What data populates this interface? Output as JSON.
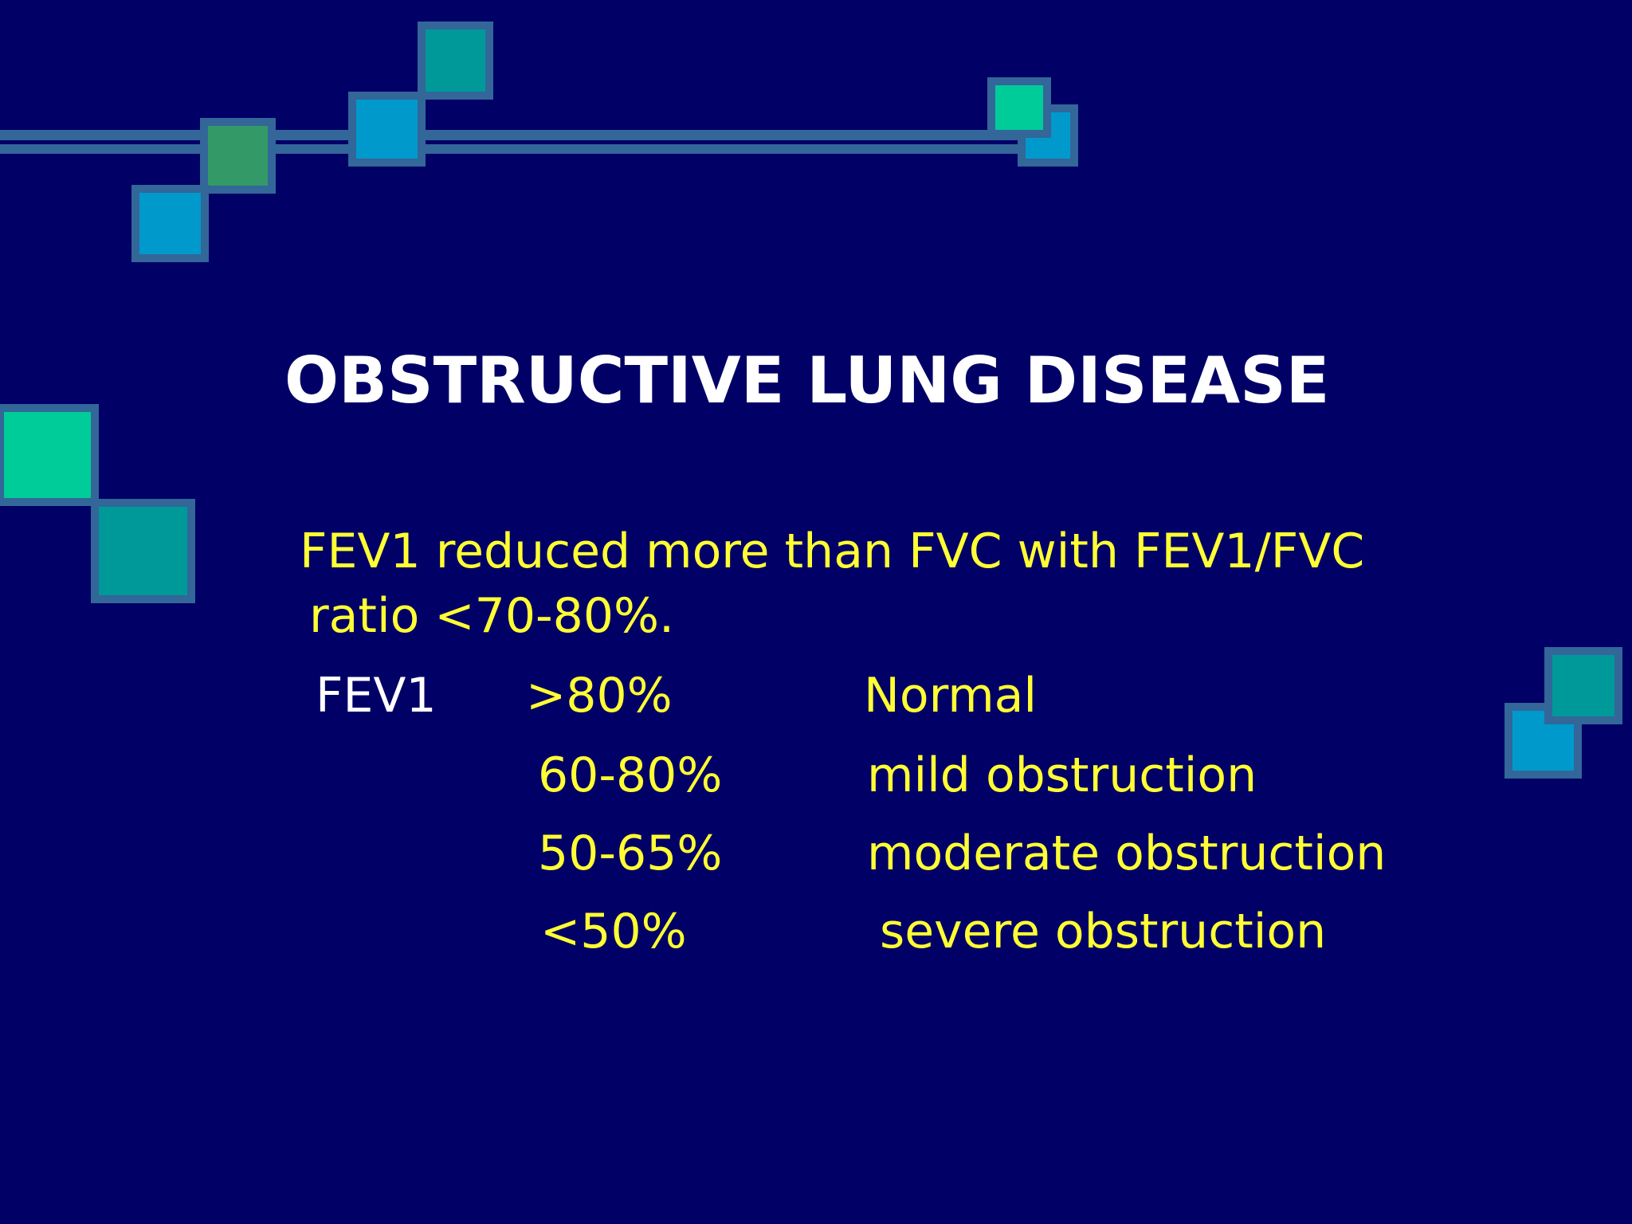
{
  "slide": {
    "title": "OBSTRUCTIVE LUNG DISEASE",
    "intro": [
      "FEV1 reduced more than FVC with FEV1/FVC",
      "ratio <70-80%."
    ],
    "table": {
      "label": "FEV1",
      "rows": [
        [
          ">80%",
          "Normal"
        ],
        [
          "60-80%",
          "mild obstruction"
        ],
        [
          "50-65%",
          "moderate obstruction"
        ],
        [
          "<50%",
          "severe obstruction"
        ]
      ]
    }
  }
}
